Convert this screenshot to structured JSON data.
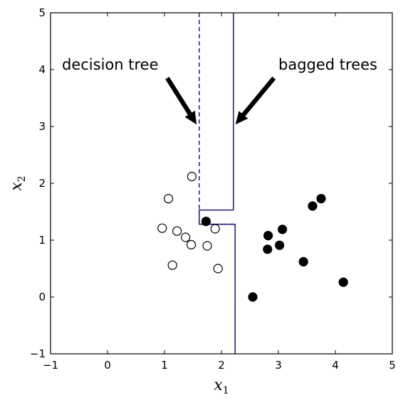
{
  "chart_data": {
    "type": "scatter",
    "xlim": [
      -1,
      5
    ],
    "ylim": [
      -1,
      5
    ],
    "x_ticks": [
      "-1",
      "0",
      "1",
      "2",
      "3",
      "4",
      "5"
    ],
    "y_ticks": [
      "-1",
      "0",
      "1",
      "2",
      "3",
      "4",
      "5"
    ],
    "xlabel": {
      "base": "x",
      "sub": "1"
    },
    "ylabel": {
      "base": "x",
      "sub": "2"
    },
    "grid": false,
    "series": [
      {
        "marker": "open-circle",
        "points": [
          [
            1.48,
            2.12
          ],
          [
            1.07,
            1.73
          ],
          [
            0.96,
            1.21
          ],
          [
            1.22,
            1.16
          ],
          [
            1.37,
            1.05
          ],
          [
            1.47,
            0.92
          ],
          [
            1.75,
            0.9
          ],
          [
            1.89,
            1.2
          ],
          [
            1.14,
            0.56
          ],
          [
            1.94,
            0.5
          ]
        ]
      },
      {
        "marker": "filled-circle",
        "points": [
          [
            1.73,
            1.33
          ],
          [
            2.82,
            1.08
          ],
          [
            3.07,
            1.19
          ],
          [
            2.81,
            0.84
          ],
          [
            3.02,
            0.91
          ],
          [
            3.6,
            1.6
          ],
          [
            3.75,
            1.73
          ],
          [
            3.44,
            0.62
          ],
          [
            2.55,
            0.0
          ],
          [
            4.14,
            0.26
          ]
        ]
      }
    ],
    "decision_boundaries": [
      {
        "style": "dashed",
        "path": [
          [
            1.61,
            5
          ],
          [
            1.61,
            1.28
          ],
          [
            2.24,
            1.28
          ],
          [
            2.24,
            -1
          ]
        ]
      },
      {
        "style": "solid",
        "path": [
          [
            2.21,
            5
          ],
          [
            2.21,
            1.53
          ],
          [
            1.61,
            1.53
          ],
          [
            1.61,
            1.28
          ],
          [
            2.24,
            1.28
          ],
          [
            2.24,
            -1
          ]
        ]
      }
    ],
    "annotations": [
      {
        "text": "decision tree",
        "text_pos": [
          -0.8,
          4.0
        ],
        "arrow_from": [
          1.05,
          3.85
        ],
        "arrow_to": [
          1.56,
          3.04
        ]
      },
      {
        "text": "bagged trees",
        "text_pos": [
          3.0,
          4.0
        ],
        "arrow_from": [
          2.92,
          3.85
        ],
        "arrow_to": [
          2.25,
          3.04
        ]
      }
    ],
    "colors": {
      "boundary": "#1b1b7a",
      "marker_edge": "#000000",
      "filled": "#000000",
      "open": "#ffffff"
    }
  }
}
